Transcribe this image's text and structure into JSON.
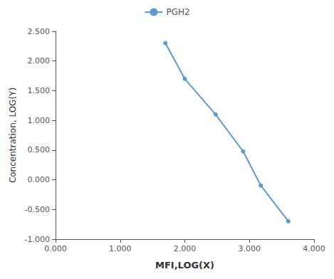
{
  "chart_data": {
    "type": "line",
    "x": [
      1.699,
      2.0,
      2.477,
      2.903,
      3.176,
      3.602
    ],
    "series": [
      {
        "name": "PGH2",
        "color": "#5b9bd5",
        "marker": "circle",
        "values": [
          2.301,
          1.699,
          1.1,
          0.477,
          -0.097,
          -0.699
        ]
      }
    ],
    "xlabel": "MFI,LOG(X)",
    "ylabel": "Concentration, LOG(Y)",
    "xlim": [
      0.0,
      4.0
    ],
    "ylim": [
      -1.0,
      2.5
    ],
    "xticks": [
      {
        "value": 0.0,
        "label": "0.000"
      },
      {
        "value": 1.0,
        "label": "1.000"
      },
      {
        "value": 2.0,
        "label": "2.000"
      },
      {
        "value": 3.0,
        "label": "3.000"
      },
      {
        "value": 4.0,
        "label": "4.000"
      }
    ],
    "yticks": [
      {
        "value": -1.0,
        "label": "-1.000"
      },
      {
        "value": -0.5,
        "label": "-0.500"
      },
      {
        "value": 0.0,
        "label": "0.000"
      },
      {
        "value": 0.5,
        "label": "0.500"
      },
      {
        "value": 1.0,
        "label": "1.000"
      },
      {
        "value": 1.5,
        "label": "1.500"
      },
      {
        "value": 2.0,
        "label": "2.000"
      },
      {
        "value": 2.5,
        "label": "2.500"
      }
    ],
    "grid": false,
    "legend": "top"
  }
}
